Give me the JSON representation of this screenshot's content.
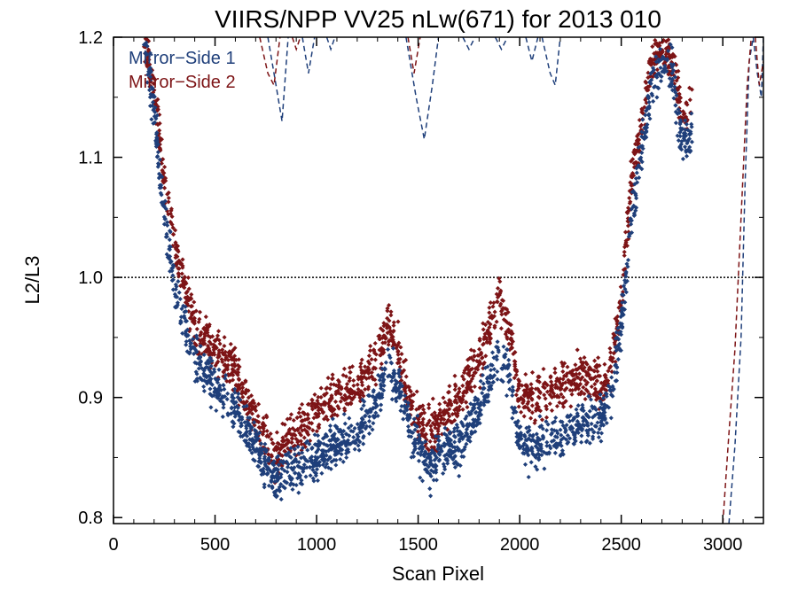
{
  "chart_data": {
    "type": "scatter",
    "title": "VIIRS/NPP VV25 nLw(671) for 2013 010",
    "xlabel": "Scan Pixel",
    "ylabel": "L2/L3",
    "xlim": [
      0,
      3200
    ],
    "ylim": [
      0.795,
      1.2
    ],
    "xticks": [
      "0",
      "500",
      "1000",
      "1500",
      "2000",
      "2500",
      "3000"
    ],
    "yticks": [
      "0.8",
      "0.9",
      "1.0",
      "1.1",
      "1.2"
    ],
    "reference_line": 1.0,
    "legend_position": "top-left",
    "series": [
      {
        "name": "Mirror−Side 1",
        "color": "#1f3f7a",
        "trend": [
          [
            150,
            1.2
          ],
          [
            200,
            1.14
          ],
          [
            250,
            1.05
          ],
          [
            300,
            0.99
          ],
          [
            350,
            0.96
          ],
          [
            400,
            0.93
          ],
          [
            500,
            0.91
          ],
          [
            600,
            0.89
          ],
          [
            700,
            0.86
          ],
          [
            800,
            0.83
          ],
          [
            900,
            0.84
          ],
          [
            1000,
            0.85
          ],
          [
            1100,
            0.86
          ],
          [
            1200,
            0.87
          ],
          [
            1300,
            0.9
          ],
          [
            1350,
            0.93
          ],
          [
            1400,
            0.91
          ],
          [
            1450,
            0.88
          ],
          [
            1500,
            0.86
          ],
          [
            1550,
            0.84
          ],
          [
            1600,
            0.85
          ],
          [
            1700,
            0.86
          ],
          [
            1800,
            0.89
          ],
          [
            1900,
            0.94
          ],
          [
            1950,
            0.92
          ],
          [
            2000,
            0.86
          ],
          [
            2100,
            0.86
          ],
          [
            2200,
            0.87
          ],
          [
            2300,
            0.88
          ],
          [
            2400,
            0.88
          ],
          [
            2450,
            0.9
          ],
          [
            2500,
            0.96
          ],
          [
            2550,
            1.05
          ],
          [
            2600,
            1.1
          ],
          [
            2650,
            1.16
          ],
          [
            2700,
            1.18
          ],
          [
            2750,
            1.17
          ],
          [
            2800,
            1.11
          ],
          [
            2850,
            1.12
          ]
        ]
      },
      {
        "name": "Mirror−Side 2",
        "color": "#7d1416",
        "trend": [
          [
            150,
            1.2
          ],
          [
            200,
            1.16
          ],
          [
            250,
            1.08
          ],
          [
            300,
            1.03
          ],
          [
            350,
            0.99
          ],
          [
            400,
            0.96
          ],
          [
            500,
            0.94
          ],
          [
            600,
            0.92
          ],
          [
            700,
            0.88
          ],
          [
            800,
            0.85
          ],
          [
            900,
            0.87
          ],
          [
            1000,
            0.89
          ],
          [
            1100,
            0.9
          ],
          [
            1200,
            0.91
          ],
          [
            1300,
            0.93
          ],
          [
            1350,
            0.96
          ],
          [
            1400,
            0.94
          ],
          [
            1450,
            0.9
          ],
          [
            1500,
            0.88
          ],
          [
            1550,
            0.87
          ],
          [
            1600,
            0.88
          ],
          [
            1700,
            0.9
          ],
          [
            1800,
            0.93
          ],
          [
            1900,
            0.98
          ],
          [
            1950,
            0.96
          ],
          [
            2000,
            0.9
          ],
          [
            2100,
            0.9
          ],
          [
            2200,
            0.91
          ],
          [
            2300,
            0.92
          ],
          [
            2400,
            0.91
          ],
          [
            2450,
            0.93
          ],
          [
            2500,
            0.98
          ],
          [
            2550,
            1.08
          ],
          [
            2600,
            1.13
          ],
          [
            2650,
            1.18
          ],
          [
            2700,
            1.19
          ],
          [
            2750,
            1.18
          ],
          [
            2800,
            1.13
          ],
          [
            2850,
            1.15
          ]
        ]
      }
    ],
    "dashed_segments": [
      {
        "series": 0,
        "points": [
          [
            760,
            1.2
          ],
          [
            800,
            1.16
          ],
          [
            830,
            1.13
          ],
          [
            860,
            1.2
          ]
        ]
      },
      {
        "series": 0,
        "points": [
          [
            930,
            1.2
          ],
          [
            960,
            1.17
          ],
          [
            990,
            1.2
          ]
        ]
      },
      {
        "series": 0,
        "points": [
          [
            1050,
            1.2
          ],
          [
            1070,
            1.19
          ],
          [
            1090,
            1.2
          ]
        ]
      },
      {
        "series": 0,
        "points": [
          [
            1440,
            1.2
          ],
          [
            1490,
            1.15
          ],
          [
            1530,
            1.115
          ],
          [
            1570,
            1.16
          ],
          [
            1600,
            1.2
          ]
        ]
      },
      {
        "series": 0,
        "points": [
          [
            1720,
            1.2
          ],
          [
            1750,
            1.19
          ],
          [
            1780,
            1.2
          ]
        ]
      },
      {
        "series": 0,
        "points": [
          [
            1880,
            1.2
          ],
          [
            1910,
            1.19
          ],
          [
            1940,
            1.2
          ]
        ]
      },
      {
        "series": 0,
        "points": [
          [
            2030,
            1.2
          ],
          [
            2060,
            1.18
          ],
          [
            2090,
            1.2
          ]
        ]
      },
      {
        "series": 0,
        "points": [
          [
            2110,
            1.2
          ],
          [
            2150,
            1.17
          ],
          [
            2175,
            1.16
          ],
          [
            2200,
            1.2
          ]
        ]
      },
      {
        "series": 1,
        "points": [
          [
            720,
            1.2
          ],
          [
            760,
            1.17
          ],
          [
            790,
            1.16
          ],
          [
            820,
            1.2
          ]
        ]
      },
      {
        "series": 1,
        "points": [
          [
            880,
            1.2
          ],
          [
            900,
            1.19
          ],
          [
            920,
            1.2
          ]
        ]
      },
      {
        "series": 1,
        "points": [
          [
            1450,
            1.2
          ],
          [
            1480,
            1.17
          ],
          [
            1510,
            1.2
          ]
        ]
      },
      {
        "series": 0,
        "points": [
          [
            3030,
            0.795
          ],
          [
            3060,
            0.86
          ],
          [
            3090,
            0.95
          ],
          [
            3110,
            1.08
          ],
          [
            3130,
            1.18
          ],
          [
            3150,
            1.2
          ]
        ]
      },
      {
        "series": 1,
        "points": [
          [
            3000,
            0.795
          ],
          [
            3030,
            0.87
          ],
          [
            3060,
            0.94
          ],
          [
            3090,
            1.05
          ],
          [
            3120,
            1.16
          ],
          [
            3140,
            1.2
          ]
        ]
      },
      {
        "series": 0,
        "points": [
          [
            3150,
            1.2
          ],
          [
            3170,
            1.17
          ],
          [
            3190,
            1.15
          ],
          [
            3200,
            1.2
          ]
        ]
      },
      {
        "series": 1,
        "points": [
          [
            3160,
            1.2
          ],
          [
            3180,
            1.16
          ],
          [
            3200,
            1.18
          ]
        ]
      }
    ]
  }
}
